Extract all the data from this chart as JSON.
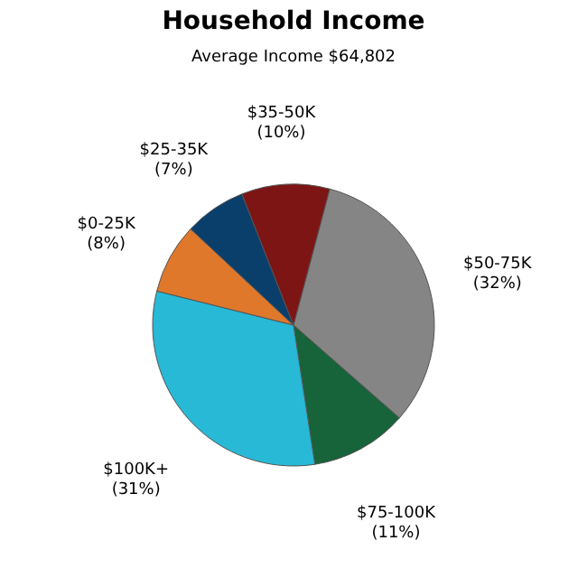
{
  "chart_data": {
    "type": "pie",
    "title": "Household Income",
    "subtitle": "Average Income  $64,802",
    "categories": [
      "$50-75K",
      "$75-100K",
      "$100K+",
      "$0-25K",
      "$25-35K",
      "$35-50K"
    ],
    "values": [
      32,
      11,
      31,
      8,
      7,
      10
    ],
    "value_labels": [
      "(32%)",
      "(11%)",
      "(31%)",
      "(8%)",
      "(7%)",
      "(10%)"
    ],
    "colors": [
      "#858585",
      "#17633a",
      "#27b9d6",
      "#e0782c",
      "#0b3f6b",
      "#7d1515"
    ],
    "legend": false
  }
}
